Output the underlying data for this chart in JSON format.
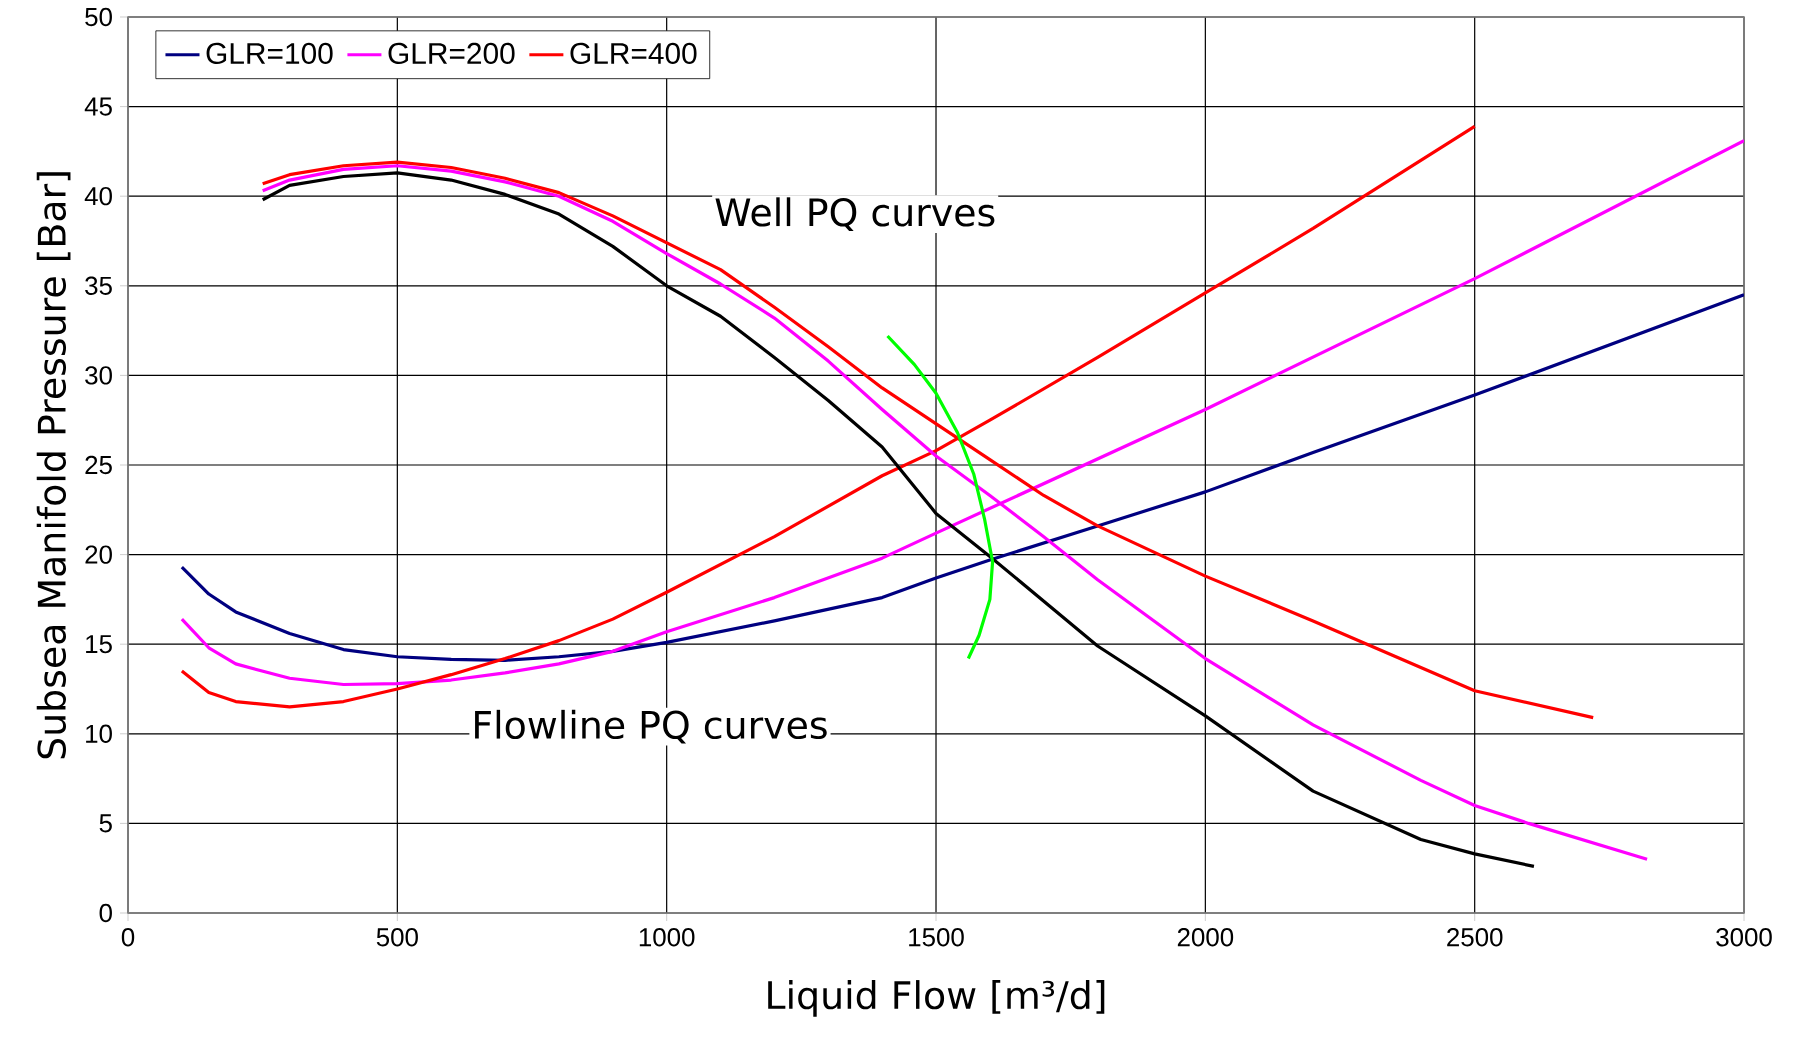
{
  "chart_data": {
    "type": "line",
    "xlabel": "Liquid Flow [m³/d]",
    "ylabel": "Subsea Manifold Pressure [Bar]",
    "xlim": [
      0,
      3000
    ],
    "ylim": [
      0,
      50
    ],
    "xticks": [
      0,
      500,
      1000,
      1500,
      2000,
      2500,
      3000
    ],
    "yticks": [
      0,
      5,
      10,
      15,
      20,
      25,
      30,
      35,
      40,
      45,
      50
    ],
    "grid": true,
    "legend": "top left",
    "annotations": [
      "Well PQ curves",
      "Flowline PQ curves"
    ],
    "series": [
      {
        "name": "GLR=100",
        "color": "#000080",
        "x": [
          100,
          150,
          200,
          300,
          400,
          500,
          600,
          700,
          800,
          900,
          1000,
          1200,
          1400,
          1500,
          1600,
          1800,
          2000,
          2200,
          2500,
          3000
        ],
        "values": [
          19.3,
          17.8,
          16.8,
          15.6,
          14.7,
          14.3,
          14.15,
          14.1,
          14.3,
          14.6,
          15.1,
          16.3,
          17.6,
          18.7,
          19.7,
          21.6,
          23.5,
          25.7,
          28.9,
          34.5
        ]
      },
      {
        "name": "GLR=200",
        "color": "#ff00ff",
        "x": [
          100,
          150,
          200,
          300,
          400,
          500,
          600,
          700,
          800,
          900,
          1000,
          1200,
          1400,
          1500,
          2000,
          2500,
          3000
        ],
        "values": [
          16.4,
          14.8,
          13.9,
          13.1,
          12.75,
          12.8,
          13.0,
          13.4,
          13.9,
          14.6,
          15.7,
          17.6,
          19.8,
          21.2,
          28.1,
          35.4,
          43.1
        ]
      },
      {
        "name": "GLR=400",
        "color": "#ff0000",
        "x": [
          100,
          150,
          200,
          300,
          400,
          500,
          600,
          700,
          800,
          900,
          1000,
          1200,
          1400,
          1500,
          1600,
          1800,
          2000,
          2200,
          2500
        ],
        "values": [
          13.5,
          12.3,
          11.8,
          11.5,
          11.8,
          12.5,
          13.3,
          14.2,
          15.2,
          16.4,
          17.9,
          21.0,
          24.4,
          25.8,
          27.5,
          31.0,
          34.6,
          38.2,
          43.9
        ]
      },
      {
        "color": "#000000",
        "x": [
          250,
          300,
          400,
          500,
          600,
          700,
          800,
          900,
          1000,
          1100,
          1200,
          1300,
          1400,
          1500,
          1600,
          1800,
          2000,
          2200,
          2400,
          2500,
          2610
        ],
        "values": [
          39.8,
          40.6,
          41.1,
          41.3,
          40.9,
          40.1,
          39.0,
          37.2,
          35.0,
          33.3,
          31.0,
          28.6,
          26.0,
          22.3,
          19.9,
          14.9,
          11.0,
          6.8,
          4.1,
          3.3,
          2.6
        ]
      },
      {
        "color": "#ff00ff",
        "x": [
          250,
          300,
          400,
          500,
          600,
          700,
          800,
          900,
          1000,
          1100,
          1200,
          1300,
          1400,
          1500,
          1600,
          1700,
          1800,
          2000,
          2200,
          2400,
          2500,
          2600,
          2820
        ],
        "values": [
          40.3,
          40.9,
          41.5,
          41.7,
          41.4,
          40.8,
          40.0,
          38.6,
          36.8,
          35.1,
          33.2,
          30.8,
          28.1,
          25.5,
          23.3,
          21.0,
          18.6,
          14.2,
          10.5,
          7.4,
          6.0,
          5.0,
          3.0
        ]
      },
      {
        "color": "#ff0000",
        "x": [
          250,
          300,
          400,
          500,
          600,
          700,
          800,
          900,
          1000,
          1100,
          1200,
          1300,
          1400,
          1500,
          1600,
          1700,
          1800,
          2000,
          2200,
          2400,
          2500,
          2720
        ],
        "values": [
          40.7,
          41.2,
          41.7,
          41.9,
          41.6,
          41.0,
          40.2,
          38.9,
          37.4,
          35.9,
          33.8,
          31.6,
          29.3,
          27.3,
          25.3,
          23.3,
          21.6,
          18.8,
          16.3,
          13.7,
          12.4,
          10.9
        ]
      },
      {
        "color": "#00ff00",
        "x": [
          1410,
          1460,
          1500,
          1540,
          1570,
          1590,
          1605,
          1600,
          1580,
          1560
        ],
        "values": [
          32.2,
          30.6,
          29.0,
          26.8,
          24.5,
          22.0,
          19.6,
          17.5,
          15.5,
          14.2
        ]
      }
    ]
  }
}
